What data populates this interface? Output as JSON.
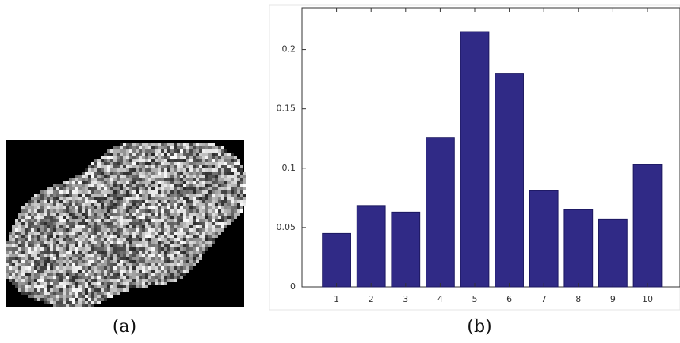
{
  "chart_data": {
    "type": "bar",
    "categories": [
      "1",
      "2",
      "3",
      "4",
      "5",
      "6",
      "7",
      "8",
      "9",
      "10"
    ],
    "values": [
      0.045,
      0.068,
      0.063,
      0.126,
      0.215,
      0.18,
      0.081,
      0.065,
      0.057,
      0.103
    ],
    "color": "#302a86",
    "ylim": [
      0,
      0.235
    ],
    "yticks": [
      0,
      0.05,
      0.1,
      0.15,
      0.2
    ]
  },
  "captions": [
    "(a)",
    "(b)"
  ]
}
